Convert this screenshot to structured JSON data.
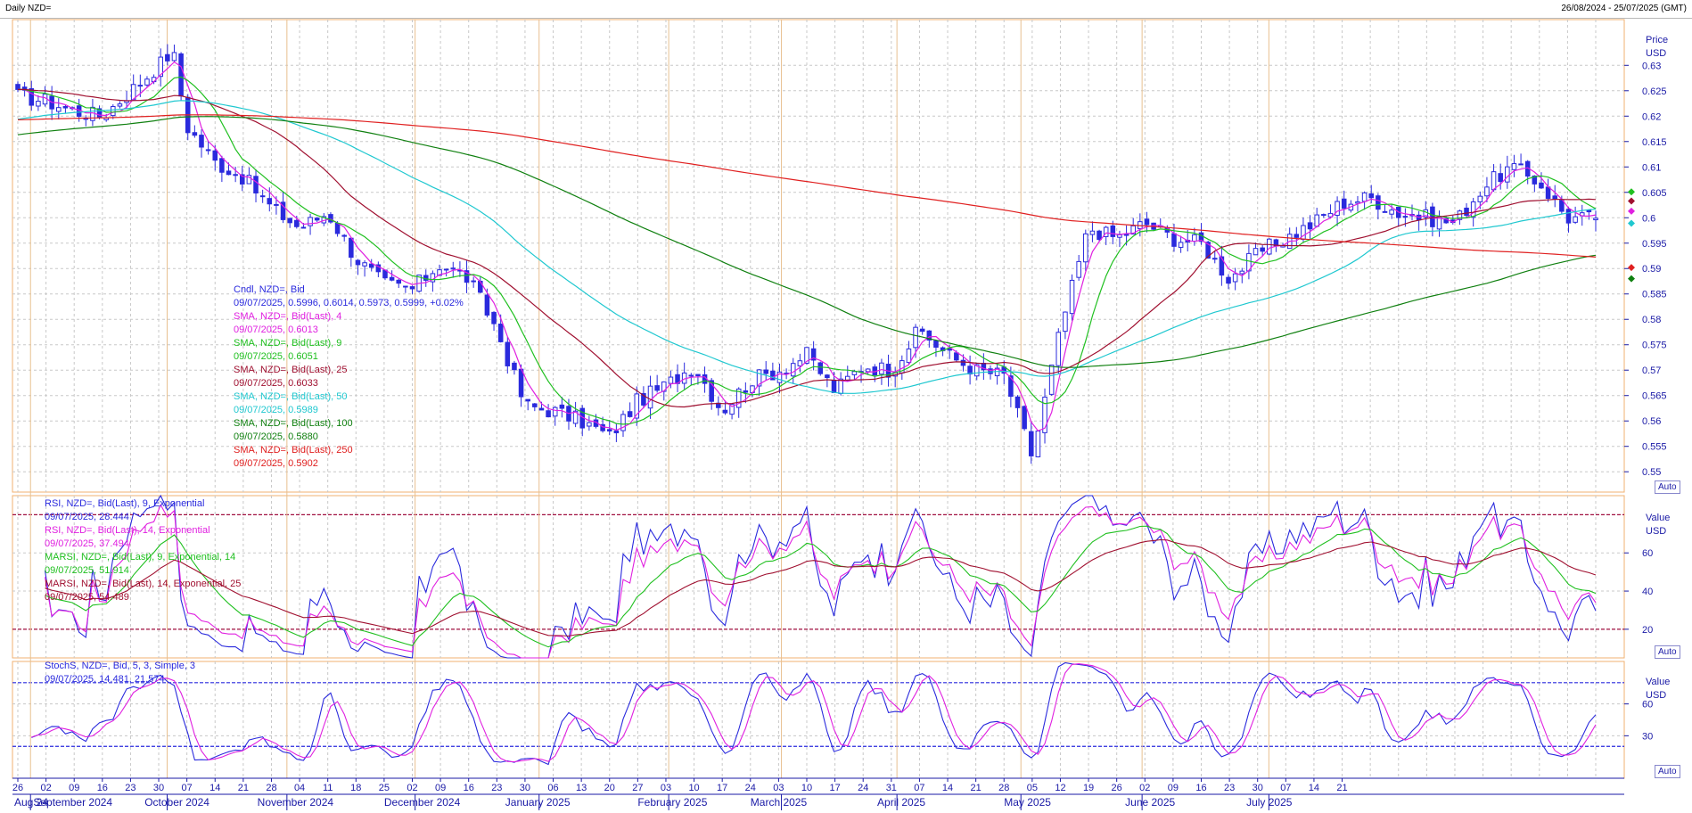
{
  "header": {
    "title": "Daily NZD=",
    "range": "26/08/2024 - 25/07/2025 (GMT)"
  },
  "colors": {
    "candle": "#2a2add",
    "sma4": "#e020e0",
    "sma9": "#20c020",
    "sma25": "#a01030",
    "sma50": "#20c8d0",
    "sma100": "#108010",
    "sma250": "#e02020",
    "rsi9": "#2a2add",
    "rsi14": "#e020e0",
    "marsi14": "#20c020",
    "marsi25": "#a01030",
    "stoch_k": "#2a2add",
    "stoch_d": "#e020e0"
  },
  "price_panel": {
    "axis_title_1": "Price",
    "axis_title_2": "USD",
    "auto_label": "Auto",
    "legend": [
      {
        "text": "Cndl, NZD=, Bid",
        "color": "candle"
      },
      {
        "text": "09/07/2025, 0.5996, 0.6014, 0.5973, 0.5999, +0.02%",
        "color": "candle"
      },
      {
        "text": "SMA, NZD=, Bid(Last), 4",
        "color": "sma4"
      },
      {
        "text": "09/07/2025, 0.6013",
        "color": "sma4"
      },
      {
        "text": "SMA, NZD=, Bid(Last), 9",
        "color": "sma9"
      },
      {
        "text": "09/07/2025, 0.6051",
        "color": "sma9"
      },
      {
        "text": "SMA, NZD=, Bid(Last), 25",
        "color": "sma25"
      },
      {
        "text": "09/07/2025, 0.6033",
        "color": "sma25"
      },
      {
        "text": "SMA, NZD=, Bid(Last), 50",
        "color": "sma50"
      },
      {
        "text": "09/07/2025, 0.5989",
        "color": "sma50"
      },
      {
        "text": "SMA, NZD=, Bid(Last), 100",
        "color": "sma100"
      },
      {
        "text": "09/07/2025, 0.5880",
        "color": "sma100"
      },
      {
        "text": "SMA, NZD=, Bid(Last), 250",
        "color": "sma250"
      },
      {
        "text": "09/07/2025, 0.5902",
        "color": "sma250"
      }
    ]
  },
  "rsi_panel": {
    "axis_title_1": "Value",
    "axis_title_2": "USD",
    "auto_label": "Auto",
    "legend": [
      {
        "text": "RSI, NZD=, Bid(Last), 9, Exponential",
        "color": "rsi9"
      },
      {
        "text": "09/07/2025, 28.444",
        "color": "rsi9"
      },
      {
        "text": "RSI, NZD=, Bid(Last), 14, Exponential",
        "color": "rsi14"
      },
      {
        "text": "09/07/2025, 37.494",
        "color": "rsi14"
      },
      {
        "text": "MARSI, NZD=, Bid(Last), 9, Exponential, 14",
        "color": "marsi14"
      },
      {
        "text": "09/07/2025, 51.914",
        "color": "marsi14"
      },
      {
        "text": "MARSI, NZD=, Bid(Last), 14, Exponential, 25",
        "color": "marsi25"
      },
      {
        "text": "09/07/2025, 54.489",
        "color": "marsi25"
      }
    ]
  },
  "stoch_panel": {
    "axis_title_1": "Value",
    "axis_title_2": "USD",
    "auto_label": "Auto",
    "legend": [
      {
        "text": "StochS, NZD=, Bid,  5, 3, Simple, 3",
        "color": "stoch_k"
      },
      {
        "text": "09/07/2025, 14.481, 21.574",
        "color": "stoch_k"
      }
    ]
  },
  "chart_data": {
    "type": "candlestick",
    "x_range": [
      "26/08/2024",
      "25/07/2025"
    ],
    "price_ylim": [
      0.546,
      0.639
    ],
    "price_ticks": [
      "0.63",
      "0.625",
      "0.62",
      "0.615",
      "0.61",
      "0.605",
      "0.6",
      "0.595",
      "0.59",
      "0.585",
      "0.58",
      "0.575",
      "0.57",
      "0.565",
      "0.56",
      "0.555",
      "0.55"
    ],
    "price_tick_values": [
      0.63,
      0.625,
      0.62,
      0.615,
      0.61,
      0.605,
      0.6,
      0.595,
      0.59,
      0.585,
      0.58,
      0.575,
      0.57,
      0.565,
      0.56,
      0.555,
      0.55
    ],
    "rsi_ylim": [
      5,
      90
    ],
    "rsi_ticks": [
      "60",
      "40",
      "20"
    ],
    "rsi_tick_values": [
      60,
      40,
      20
    ],
    "rsi_levels": [
      80,
      20
    ],
    "stoch_ylim": [
      -10,
      100
    ],
    "stoch_ticks": [
      "60",
      "30"
    ],
    "stoch_tick_values": [
      60,
      30
    ],
    "stoch_levels": [
      80,
      20
    ],
    "day_ticks": [
      "26",
      "02",
      "09",
      "16",
      "23",
      "30",
      "07",
      "14",
      "21",
      "28",
      "04",
      "11",
      "18",
      "25",
      "02",
      "09",
      "16",
      "23",
      "30",
      "06",
      "13",
      "20",
      "27",
      "03",
      "10",
      "17",
      "24",
      "03",
      "10",
      "17",
      "24",
      "31",
      "07",
      "14",
      "21",
      "28",
      "05",
      "12",
      "19",
      "26",
      "02",
      "09",
      "16",
      "23",
      "30",
      "07",
      "14",
      "21"
    ],
    "month_labels": [
      {
        "label": "Aug 24",
        "at": 0
      },
      {
        "label": "September 2024",
        "at": 0.55
      },
      {
        "label": "October 2024",
        "at": 4.5
      },
      {
        "label": "November 2024",
        "at": 8.5
      },
      {
        "label": "December 2024",
        "at": 13
      },
      {
        "label": "January 2025",
        "at": 17.3
      },
      {
        "label": "February 2025",
        "at": 22
      },
      {
        "label": "March 2025",
        "at": 26
      },
      {
        "label": "April 2025",
        "at": 30.5
      },
      {
        "label": "May 2025",
        "at": 35
      },
      {
        "label": "June 2025",
        "at": 39.3
      },
      {
        "label": "July 2025",
        "at": 43.6
      }
    ],
    "month_separators": [
      0.45,
      5.3,
      9.55,
      14.1,
      18.5,
      23.1,
      27.1,
      31.2,
      35.6,
      39.9,
      44.4
    ],
    "close_anchors": [
      [
        0,
        0.624
      ],
      [
        1,
        0.623
      ],
      [
        2,
        0.621
      ],
      [
        3,
        0.62
      ],
      [
        4,
        0.625
      ],
      [
        5,
        0.63
      ],
      [
        5.5,
        0.633
      ],
      [
        6,
        0.618
      ],
      [
        7,
        0.611
      ],
      [
        8,
        0.608
      ],
      [
        9,
        0.602
      ],
      [
        10,
        0.598
      ],
      [
        11,
        0.601
      ],
      [
        12,
        0.592
      ],
      [
        13,
        0.587
      ],
      [
        14,
        0.586
      ],
      [
        15,
        0.591
      ],
      [
        16,
        0.588
      ],
      [
        17,
        0.578
      ],
      [
        18,
        0.563
      ],
      [
        19,
        0.562
      ],
      [
        20,
        0.56
      ],
      [
        21,
        0.557
      ],
      [
        22,
        0.564
      ],
      [
        23,
        0.567
      ],
      [
        24,
        0.571
      ],
      [
        25,
        0.562
      ],
      [
        26,
        0.568
      ],
      [
        27,
        0.57
      ],
      [
        28,
        0.573
      ],
      [
        29,
        0.566
      ],
      [
        30,
        0.571
      ],
      [
        31,
        0.57
      ],
      [
        32,
        0.578
      ],
      [
        33,
        0.573
      ],
      [
        34,
        0.57
      ],
      [
        35,
        0.569
      ],
      [
        36,
        0.553
      ],
      [
        37,
        0.578
      ],
      [
        38,
        0.598
      ],
      [
        39,
        0.596
      ],
      [
        40,
        0.599
      ],
      [
        41,
        0.596
      ],
      [
        42,
        0.595
      ],
      [
        43,
        0.588
      ],
      [
        44,
        0.593
      ],
      [
        45,
        0.596
      ],
      [
        46,
        0.599
      ],
      [
        47,
        0.603
      ],
      [
        48,
        0.604
      ],
      [
        49,
        0.601
      ],
      [
        50,
        0.6
      ],
      [
        51,
        0.599
      ],
      [
        52,
        0.606
      ],
      [
        53,
        0.61
      ],
      [
        54,
        0.607
      ],
      [
        55,
        0.6
      ],
      [
        55.5,
        0.5999
      ]
    ]
  }
}
